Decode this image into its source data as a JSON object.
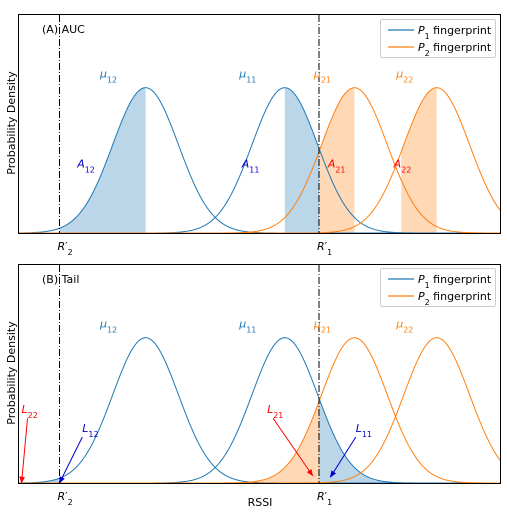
{
  "chart_data": [
    {
      "type": "line",
      "panel_label": "(A) AUC",
      "ylabel": "Probability Density",
      "xlabel": "",
      "legend": {
        "placement": "top-right",
        "entries": [
          {
            "label": "P1 fingerprint",
            "color": "#1f77b4"
          },
          {
            "label": "P2 fingerprint",
            "color": "#ff7f0e"
          }
        ]
      },
      "vlines": [
        {
          "x": -1.9,
          "label": "R'2",
          "style": "dash-dot"
        },
        {
          "x": 8.35,
          "label": "R'1",
          "style": "dash-dot"
        }
      ],
      "series": [
        {
          "name": "P1 fingerprint",
          "color": "#1f77b4",
          "gaussians": [
            {
              "mu": 1.5,
              "sigma": 1.3,
              "peak": 1.0
            },
            {
              "mu": 7.0,
              "sigma": 1.3,
              "peak": 1.0
            }
          ]
        },
        {
          "name": "P2 fingerprint",
          "color": "#ff7f0e",
          "gaussians": [
            {
              "mu": 9.75,
              "sigma": 1.3,
              "peak": 1.0
            },
            {
              "mu": 13.0,
              "sigma": 1.3,
              "peak": 1.0
            }
          ]
        }
      ],
      "shaded_areas": [
        {
          "from": -1.9,
          "to": 1.5,
          "curve": 0,
          "color": "#1f77b4"
        },
        {
          "from": 7.0,
          "to": 8.35,
          "curve": 0,
          "color": "#1f77b4"
        },
        {
          "from": 8.35,
          "to": 9.75,
          "curve": 1,
          "color": "#ff7f0e"
        },
        {
          "from": 11.6,
          "to": 13.0,
          "curve": 1,
          "color": "#ff7f0e"
        }
      ],
      "annotations": [
        {
          "text": "μ12",
          "x": -0.3,
          "y": 1.07,
          "color": "#1f77b4"
        },
        {
          "text": "μ11",
          "x": 5.2,
          "y": 1.07,
          "color": "#1f77b4"
        },
        {
          "text": "μ21",
          "x": 8.15,
          "y": 1.07,
          "color": "#ff7f0e"
        },
        {
          "text": "μ22",
          "x": 11.4,
          "y": 1.07,
          "color": "#ff7f0e"
        },
        {
          "text": "A12",
          "x": -1.2,
          "y": 0.45,
          "color": "#0000cc"
        },
        {
          "text": "A11",
          "x": 5.3,
          "y": 0.45,
          "color": "#0000cc"
        },
        {
          "text": "A21",
          "x": 8.7,
          "y": 0.45,
          "color": "#ff0000"
        },
        {
          "text": "A22",
          "x": 11.3,
          "y": 0.45,
          "color": "#ff0000"
        }
      ],
      "xlim": [
        -3.5,
        15.5
      ],
      "ylim": [
        0,
        1.5
      ],
      "grid": false
    },
    {
      "type": "line",
      "panel_label": "(B) Tail",
      "ylabel": "Probability Density",
      "xlabel": "RSSI",
      "legend": {
        "placement": "top-right",
        "entries": [
          {
            "label": "P1 fingerprint",
            "color": "#1f77b4"
          },
          {
            "label": "P2 fingerprint",
            "color": "#ff7f0e"
          }
        ]
      },
      "vlines": [
        {
          "x": -1.9,
          "label": "R'2",
          "style": "dash-dot"
        },
        {
          "x": 8.35,
          "label": "R'1",
          "style": "dash-dot"
        }
      ],
      "series": [
        {
          "name": "P1 fingerprint",
          "color": "#1f77b4",
          "gaussians": [
            {
              "mu": 1.5,
              "sigma": 1.3,
              "peak": 1.0
            },
            {
              "mu": 7.0,
              "sigma": 1.3,
              "peak": 1.0
            }
          ]
        },
        {
          "name": "P2 fingerprint",
          "color": "#ff7f0e",
          "gaussians": [
            {
              "mu": 9.75,
              "sigma": 1.3,
              "peak": 1.0
            },
            {
              "mu": 13.0,
              "sigma": 1.3,
              "peak": 1.0
            }
          ]
        }
      ],
      "shaded_areas": [
        {
          "from": -3.5,
          "to": -1.9,
          "curve": 0,
          "color": "#1f77b4"
        },
        {
          "from": 8.35,
          "to": 15.5,
          "curve": 0,
          "color": "#1f77b4"
        },
        {
          "from": -3.5,
          "to": 8.35,
          "curve": 1,
          "color": "#ff7f0e"
        }
      ],
      "annotations": [
        {
          "text": "μ12",
          "x": -0.3,
          "y": 1.07,
          "color": "#1f77b4"
        },
        {
          "text": "μ11",
          "x": 5.2,
          "y": 1.07,
          "color": "#1f77b4"
        },
        {
          "text": "μ21",
          "x": 8.15,
          "y": 1.07,
          "color": "#ff7f0e"
        },
        {
          "text": "μ22",
          "x": 11.4,
          "y": 1.07,
          "color": "#ff7f0e"
        }
      ],
      "arrows": [
        {
          "text": "L22",
          "color": "#ff0000",
          "text_x": -3.4,
          "text_y": 0.48,
          "tip_x": -3.4,
          "tip_y": 0.0
        },
        {
          "text": "L12",
          "color": "#0000cc",
          "text_x": -1.0,
          "text_y": 0.35,
          "tip_x": -1.9,
          "tip_y": 0.0
        },
        {
          "text": "L21",
          "color": "#ff0000",
          "text_x": 6.3,
          "text_y": 0.48,
          "tip_x": 8.1,
          "tip_y": 0.05
        },
        {
          "text": "L11",
          "color": "#0000cc",
          "text_x": 9.8,
          "text_y": 0.35,
          "tip_x": 8.8,
          "tip_y": 0.04
        }
      ],
      "xlim": [
        -3.5,
        15.5
      ],
      "ylim": [
        0,
        1.5
      ],
      "grid": false
    }
  ]
}
